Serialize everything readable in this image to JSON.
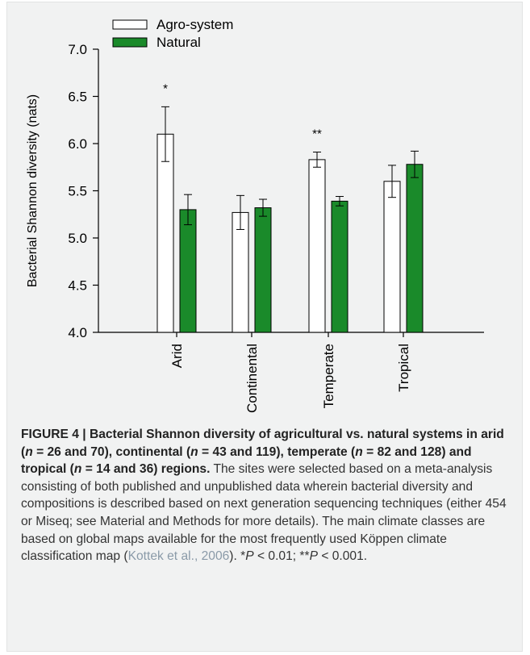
{
  "chart_data": {
    "type": "bar",
    "categories": [
      "Arid",
      "Continental",
      "Temperate",
      "Tropical"
    ],
    "series": [
      {
        "name": "Agro-system",
        "color": "#ffffff",
        "values": [
          6.1,
          5.27,
          5.83,
          5.6
        ],
        "errors": [
          0.29,
          0.18,
          0.08,
          0.17
        ]
      },
      {
        "name": "Natural",
        "color": "#1a8a2a",
        "values": [
          5.3,
          5.32,
          5.39,
          5.78
        ],
        "errors": [
          0.16,
          0.09,
          0.05,
          0.14
        ]
      }
    ],
    "annotations": [
      {
        "category": "Arid",
        "text": "*"
      },
      {
        "category": "Temperate",
        "text": "**"
      }
    ],
    "ylabel": "Bacterial Shannon diversity (nats)",
    "xlabel": "",
    "ylim": [
      4.0,
      7.0
    ],
    "yticks": [
      "4.0",
      "4.5",
      "5.0",
      "5.5",
      "6.0",
      "6.5",
      "7.0"
    ],
    "legend_position": "top-left",
    "grid": false
  },
  "caption": {
    "title_parts": [
      "FIGURE 4 | Bacterial Shannon diversity of agricultural vs. natural systems in arid (",
      "n",
      " = 26 and 70), continental (",
      "n",
      " = 43 and 119), temperate (",
      "n",
      " = 82 and 128) and tropical (",
      "n",
      " = 14 and 36) regions."
    ],
    "body": " The sites were selected based on a meta-analysis consisting of both published and unpublished data wherein bacterial diversity and compositions is described based on next generation sequencing techniques (either 454 or Miseq; see Material and Methods for more details). The main climate classes are based on global maps available for the most frequently used Köppen climate classification map (",
    "citation": "Kottek et al., 2006",
    "tail_parts": [
      "). *",
      "P",
      " < 0.01; **",
      "P",
      " < 0.001."
    ]
  }
}
